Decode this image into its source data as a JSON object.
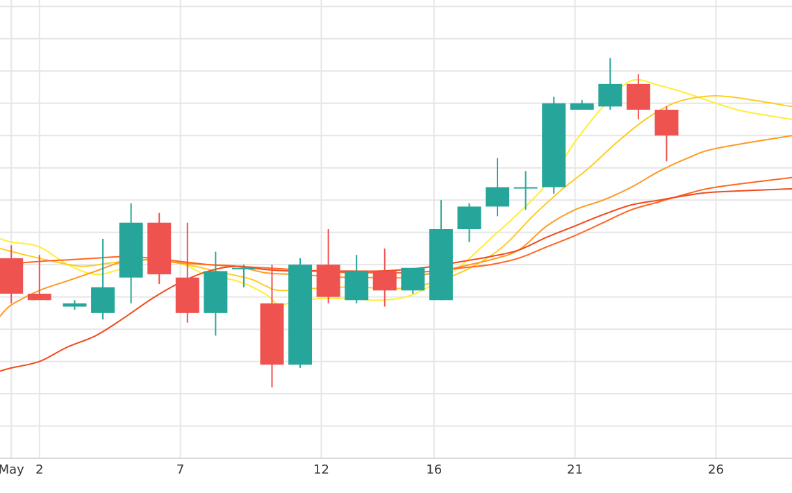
{
  "chart_data": {
    "type": "candlestick",
    "x_tick_labels": [
      {
        "day": 1,
        "label": "May"
      },
      {
        "day": 2,
        "label": "2"
      },
      {
        "day": 7,
        "label": "7"
      },
      {
        "day": 12,
        "label": "12"
      },
      {
        "day": 16,
        "label": "16"
      },
      {
        "day": 21,
        "label": "21"
      },
      {
        "day": 26,
        "label": "26"
      }
    ],
    "xlim": [
      0.6,
      28.7
    ],
    "ylim": [
      0,
      14.2
    ],
    "grid": true,
    "colors": {
      "up": "#26a69a",
      "down": "#ef5350",
      "grid": "#e6e6e6",
      "ma": [
        "#ffee33",
        "#ffcc22",
        "#ff9922",
        "#ff6622",
        "#f04a1e"
      ]
    },
    "candles": [
      {
        "day": 1.0,
        "open": 6.2,
        "high": 6.6,
        "low": 4.8,
        "close": 5.1
      },
      {
        "day": 2.0,
        "open": 5.1,
        "high": 6.3,
        "low": 4.9,
        "close": 4.9
      },
      {
        "day": 3.25,
        "open": 4.7,
        "high": 4.9,
        "low": 4.6,
        "close": 4.8
      },
      {
        "day": 4.25,
        "open": 4.5,
        "high": 6.8,
        "low": 4.3,
        "close": 5.3
      },
      {
        "day": 5.25,
        "open": 5.6,
        "high": 7.9,
        "low": 4.8,
        "close": 7.3
      },
      {
        "day": 6.25,
        "open": 7.3,
        "high": 7.6,
        "low": 5.4,
        "close": 5.7
      },
      {
        "day": 7.25,
        "open": 5.6,
        "high": 7.3,
        "low": 4.2,
        "close": 4.5
      },
      {
        "day": 8.25,
        "open": 4.5,
        "high": 6.4,
        "low": 3.8,
        "close": 5.8
      },
      {
        "day": 9.25,
        "open": 5.9,
        "high": 6.0,
        "low": 5.3,
        "close": 5.9
      },
      {
        "day": 10.25,
        "open": 4.8,
        "high": 6.0,
        "low": 2.2,
        "close": 2.9
      },
      {
        "day": 11.25,
        "open": 2.9,
        "high": 6.2,
        "low": 2.8,
        "close": 6.0
      },
      {
        "day": 12.25,
        "open": 6.0,
        "high": 7.1,
        "low": 4.8,
        "close": 5.0
      },
      {
        "day": 13.25,
        "open": 4.9,
        "high": 6.3,
        "low": 4.8,
        "close": 5.8
      },
      {
        "day": 14.25,
        "open": 5.8,
        "high": 6.5,
        "low": 4.7,
        "close": 5.2
      },
      {
        "day": 15.25,
        "open": 5.2,
        "high": 5.9,
        "low": 5.1,
        "close": 5.9
      },
      {
        "day": 16.25,
        "open": 4.9,
        "high": 8.0,
        "low": 4.9,
        "close": 7.1
      },
      {
        "day": 17.25,
        "open": 7.1,
        "high": 7.9,
        "low": 6.7,
        "close": 7.8
      },
      {
        "day": 18.25,
        "open": 7.8,
        "high": 9.3,
        "low": 7.5,
        "close": 8.4
      },
      {
        "day": 19.25,
        "open": 8.4,
        "high": 8.9,
        "low": 7.7,
        "close": 8.4
      },
      {
        "day": 20.25,
        "open": 8.4,
        "high": 11.2,
        "low": 8.2,
        "close": 11.0
      },
      {
        "day": 21.25,
        "open": 10.8,
        "high": 11.1,
        "low": 10.8,
        "close": 11.0
      },
      {
        "day": 22.25,
        "open": 10.9,
        "high": 12.4,
        "low": 10.8,
        "close": 11.6
      },
      {
        "day": 23.25,
        "open": 11.6,
        "high": 11.9,
        "low": 10.5,
        "close": 10.8
      },
      {
        "day": 24.25,
        "open": 10.8,
        "high": 10.9,
        "low": 9.2,
        "close": 10.0
      }
    ],
    "moving_averages": [
      {
        "color": "#ffee33",
        "values": [
          [
            0.6,
            6.8
          ],
          [
            1.0,
            6.7
          ],
          [
            2.0,
            6.55
          ],
          [
            3.0,
            6.0
          ],
          [
            4.0,
            5.7
          ],
          [
            5.0,
            5.9
          ],
          [
            6.0,
            6.2
          ],
          [
            7.0,
            6.05
          ],
          [
            8.0,
            5.65
          ],
          [
            9.0,
            5.5
          ],
          [
            10.0,
            5.1
          ],
          [
            10.5,
            4.75
          ],
          [
            11.0,
            4.85
          ],
          [
            12.0,
            4.95
          ],
          [
            13.0,
            4.95
          ],
          [
            14.0,
            4.9
          ],
          [
            15.0,
            5.0
          ],
          [
            16.0,
            5.4
          ],
          [
            17.0,
            6.0
          ],
          [
            18.0,
            6.8
          ],
          [
            19.0,
            7.6
          ],
          [
            20.0,
            8.5
          ],
          [
            21.0,
            9.8
          ],
          [
            22.0,
            10.9
          ],
          [
            23.0,
            11.7
          ],
          [
            24.0,
            11.55
          ],
          [
            25.0,
            11.3
          ],
          [
            26.0,
            11.0
          ],
          [
            27.0,
            10.75
          ],
          [
            28.7,
            10.5
          ]
        ]
      },
      {
        "color": "#ffcc22",
        "values": [
          [
            0.6,
            6.5
          ],
          [
            1.5,
            6.3
          ],
          [
            2.5,
            6.1
          ],
          [
            3.5,
            5.95
          ],
          [
            4.5,
            6.05
          ],
          [
            5.5,
            6.15
          ],
          [
            6.5,
            6.1
          ],
          [
            7.5,
            5.95
          ],
          [
            8.5,
            5.75
          ],
          [
            9.5,
            5.55
          ],
          [
            10.0,
            5.35
          ],
          [
            10.5,
            5.2
          ],
          [
            11.5,
            5.25
          ],
          [
            12.5,
            5.3
          ],
          [
            13.5,
            5.3
          ],
          [
            14.5,
            5.25
          ],
          [
            15.5,
            5.35
          ],
          [
            16.5,
            5.6
          ],
          [
            17.5,
            6.0
          ],
          [
            18.5,
            6.6
          ],
          [
            19.5,
            7.5
          ],
          [
            20.5,
            8.3
          ],
          [
            21.5,
            9.0
          ],
          [
            22.5,
            9.8
          ],
          [
            23.5,
            10.5
          ],
          [
            24.5,
            11.0
          ],
          [
            25.5,
            11.2
          ],
          [
            26.5,
            11.2
          ],
          [
            28.7,
            10.9
          ]
        ]
      },
      {
        "color": "#ff9922",
        "values": [
          [
            0.6,
            4.4
          ],
          [
            1.0,
            4.75
          ],
          [
            2.0,
            5.2
          ],
          [
            3.0,
            5.5
          ],
          [
            4.0,
            5.8
          ],
          [
            5.0,
            6.1
          ],
          [
            6.0,
            6.15
          ],
          [
            7.0,
            6.05
          ],
          [
            8.0,
            6.0
          ],
          [
            9.0,
            5.95
          ],
          [
            10.0,
            5.75
          ],
          [
            11.0,
            5.7
          ],
          [
            12.0,
            5.65
          ],
          [
            13.0,
            5.6
          ],
          [
            14.0,
            5.6
          ],
          [
            15.0,
            5.6
          ],
          [
            16.0,
            5.75
          ],
          [
            17.0,
            5.95
          ],
          [
            18.0,
            6.15
          ],
          [
            19.0,
            6.45
          ],
          [
            20.0,
            7.2
          ],
          [
            21.0,
            7.7
          ],
          [
            22.0,
            8.0
          ],
          [
            23.0,
            8.4
          ],
          [
            24.0,
            8.9
          ],
          [
            25.0,
            9.3
          ],
          [
            26.0,
            9.6
          ],
          [
            28.7,
            10.0
          ]
        ]
      },
      {
        "color": "#ff6622",
        "values": [
          [
            0.6,
            6.0
          ],
          [
            2.0,
            6.1
          ],
          [
            3.0,
            6.15
          ],
          [
            4.0,
            6.2
          ],
          [
            5.0,
            6.25
          ],
          [
            6.0,
            6.2
          ],
          [
            7.0,
            6.1
          ],
          [
            8.0,
            6.0
          ],
          [
            9.0,
            5.95
          ],
          [
            10.0,
            5.9
          ],
          [
            11.0,
            5.85
          ],
          [
            12.0,
            5.8
          ],
          [
            13.0,
            5.75
          ],
          [
            14.0,
            5.75
          ],
          [
            15.0,
            5.75
          ],
          [
            16.0,
            5.8
          ],
          [
            17.0,
            5.9
          ],
          [
            18.0,
            6.0
          ],
          [
            19.0,
            6.2
          ],
          [
            20.0,
            6.55
          ],
          [
            21.0,
            6.9
          ],
          [
            22.0,
            7.3
          ],
          [
            23.0,
            7.7
          ],
          [
            24.0,
            7.95
          ],
          [
            25.0,
            8.2
          ],
          [
            26.0,
            8.4
          ],
          [
            28.7,
            8.7
          ]
        ]
      },
      {
        "color": "#f04a1e",
        "values": [
          [
            0.6,
            2.7
          ],
          [
            1.0,
            2.8
          ],
          [
            2.0,
            3.0
          ],
          [
            3.0,
            3.45
          ],
          [
            4.0,
            3.8
          ],
          [
            5.0,
            4.35
          ],
          [
            6.0,
            4.95
          ],
          [
            7.0,
            5.45
          ],
          [
            8.0,
            5.8
          ],
          [
            9.0,
            5.95
          ],
          [
            10.0,
            5.85
          ],
          [
            11.0,
            5.8
          ],
          [
            12.0,
            5.8
          ],
          [
            13.0,
            5.8
          ],
          [
            14.0,
            5.8
          ],
          [
            15.0,
            5.85
          ],
          [
            16.0,
            5.95
          ],
          [
            17.0,
            6.1
          ],
          [
            18.0,
            6.25
          ],
          [
            19.0,
            6.45
          ],
          [
            20.0,
            6.85
          ],
          [
            21.0,
            7.2
          ],
          [
            22.0,
            7.55
          ],
          [
            23.0,
            7.85
          ],
          [
            24.0,
            8.0
          ],
          [
            25.0,
            8.15
          ],
          [
            26.0,
            8.25
          ],
          [
            28.7,
            8.35
          ]
        ]
      }
    ]
  }
}
